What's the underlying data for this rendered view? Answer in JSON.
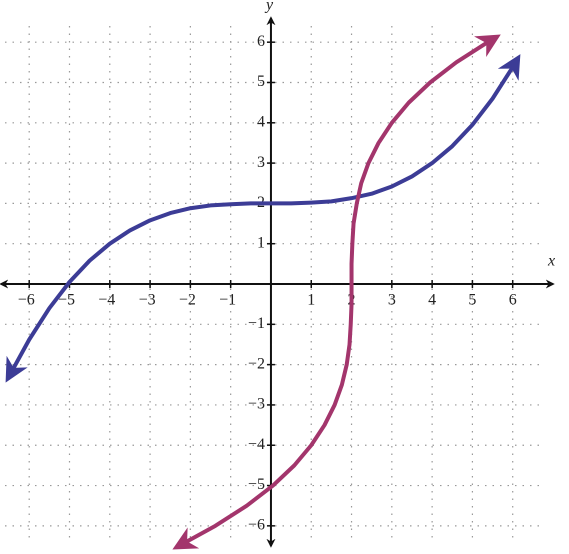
{
  "chart_data": {
    "type": "line",
    "xlabel": "x",
    "ylabel": "y",
    "xlim": [
      -6.7,
      7
    ],
    "ylim": [
      -6.5,
      6.6
    ],
    "xticks": [
      {
        "value": -6,
        "label": "−6"
      },
      {
        "value": -5,
        "label": "−5"
      },
      {
        "value": -4,
        "label": "−4"
      },
      {
        "value": -3,
        "label": "−3"
      },
      {
        "value": -2,
        "label": "−2"
      },
      {
        "value": -1,
        "label": "−1"
      },
      1,
      2,
      3,
      4,
      5,
      6
    ],
    "yticks": [
      {
        "value": -6,
        "label": "−6"
      },
      {
        "value": -5,
        "label": "−5"
      },
      {
        "value": -4,
        "label": "−4"
      },
      {
        "value": -3,
        "label": "−3"
      },
      {
        "value": -2,
        "label": "−2"
      },
      {
        "value": -1,
        "label": "−1"
      },
      1,
      2,
      3,
      4,
      5,
      6
    ],
    "grid": true,
    "series": [
      {
        "color": "#3c3c96",
        "x": [
          -6.5,
          -6,
          -5.5,
          -5,
          -4.5,
          -4,
          -3.5,
          -3,
          -2.5,
          -2,
          -1.5,
          -1,
          -0.5,
          0,
          0.5,
          1,
          1.5,
          2,
          2.5,
          3,
          3.5,
          4,
          4.5,
          5,
          5.5,
          6,
          6.1
        ],
        "values": [
          -2.29,
          -1.38,
          -0.6,
          0.05,
          0.58,
          1,
          1.33,
          1.58,
          1.76,
          1.88,
          1.95,
          1.98,
          2,
          2,
          2,
          2.02,
          2.05,
          2.13,
          2.24,
          2.42,
          2.67,
          3,
          3.42,
          3.95,
          4.6,
          5.38,
          5.55
        ]
      },
      {
        "color": "#a3356c",
        "x": [
          -2.29,
          -1.38,
          -0.6,
          0.05,
          0.58,
          1,
          1.33,
          1.58,
          1.76,
          1.88,
          1.95,
          1.98,
          2,
          2,
          2,
          2.02,
          2.05,
          2.13,
          2.24,
          2.42,
          2.67,
          3,
          3.42,
          3.95,
          4.6,
          5.38,
          5.55
        ],
        "values": [
          -6.5,
          -6,
          -5.5,
          -5,
          -4.5,
          -4,
          -3.5,
          -3,
          -2.5,
          -2,
          -1.5,
          -1,
          -0.5,
          0,
          0.5,
          1,
          1.5,
          2,
          2.5,
          3,
          3.5,
          4,
          4.5,
          5,
          5.5,
          6,
          6.1
        ]
      }
    ]
  }
}
